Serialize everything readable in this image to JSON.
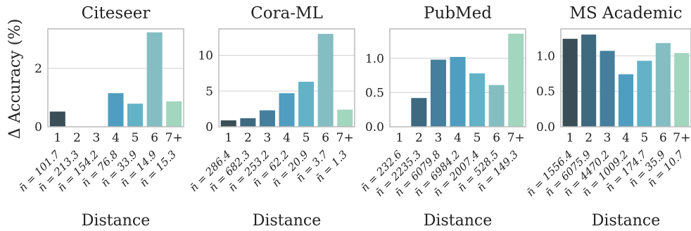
{
  "ylabel": "Δ Accuracy (%)",
  "chart_data": [
    {
      "type": "bar",
      "title": "Citeseer",
      "xlabel": "Distance",
      "ylabel": "Δ Accuracy (%)",
      "categories": [
        "1",
        "2",
        "3",
        "4",
        "5",
        "6",
        "7+"
      ],
      "values": [
        0.52,
        0.0,
        0.0,
        1.15,
        0.79,
        3.23,
        0.87
      ],
      "yticks": [
        0,
        2
      ],
      "ylim": [
        0,
        3.35
      ],
      "n_labels": [
        "n̄ = 101.7",
        "n̄ = 213.3",
        "n̄ = 154.2",
        "n̄ = 76.8",
        "n̄ = 33.9",
        "n̄ = 14.9",
        "n̄ = 15.3"
      ],
      "grid": true
    },
    {
      "type": "bar",
      "title": "Cora-ML",
      "xlabel": "Distance",
      "categories": [
        "1",
        "2",
        "3",
        "4",
        "5",
        "6",
        "7+"
      ],
      "values": [
        0.9,
        1.2,
        2.3,
        4.7,
        6.3,
        13.0,
        2.4
      ],
      "yticks": [
        0,
        5,
        10
      ],
      "ylim": [
        0,
        13.7
      ],
      "n_labels": [
        "n̄ = 286.4",
        "n̄ = 682.3",
        "n̄ = 253.2",
        "n̄ = 62.2",
        "n̄ = 20.9",
        "n̄ = 3.7",
        "n̄ = 1.3"
      ],
      "grid": true
    },
    {
      "type": "bar",
      "title": "PubMed",
      "xlabel": "Distance",
      "categories": [
        "1",
        "2",
        "3",
        "4",
        "5",
        "6",
        "7+"
      ],
      "values": [
        0.0,
        0.42,
        0.98,
        1.02,
        0.78,
        0.61,
        1.36
      ],
      "yticks": [
        "0.0",
        "0.5",
        "1.0"
      ],
      "ytick_values": [
        0,
        0.5,
        1.0
      ],
      "ylim": [
        0,
        1.43
      ],
      "n_labels": [
        "n̄ = 232.6",
        "n̄ = 2235.3",
        "n̄ = 6079.8",
        "n̄ = 6984.2",
        "n̄ = 2007.4",
        "n̄ = 528.5",
        "n̄ = 149.3"
      ],
      "grid": true
    },
    {
      "type": "bar",
      "title": "MS Academic",
      "xlabel": "Distance",
      "categories": [
        "1",
        "2",
        "3",
        "4",
        "5",
        "6",
        "7+"
      ],
      "values": [
        1.24,
        1.3,
        1.07,
        0.74,
        0.93,
        1.18,
        1.04
      ],
      "yticks": [
        "0.0",
        "0.5",
        "1.0"
      ],
      "ytick_values": [
        0,
        0.5,
        1.0
      ],
      "ylim": [
        0,
        1.38
      ],
      "n_labels": [
        "n̄ = 1556.4",
        "n̄ = 6075.9",
        "n̄ = 4470.2",
        "n̄ = 1009.2",
        "n̄ = 174.7",
        "n̄ = 35.9",
        "n̄ = 10.7"
      ],
      "grid": true
    }
  ],
  "colors": {
    "bars": [
      "#3a4e57",
      "#3e6a80",
      "#457f9d",
      "#4f9dc0",
      "#63b2c8",
      "#84bec2",
      "#a2d6bf"
    ],
    "grid": "#d0d0d0",
    "frame": "#bbbbbb"
  }
}
